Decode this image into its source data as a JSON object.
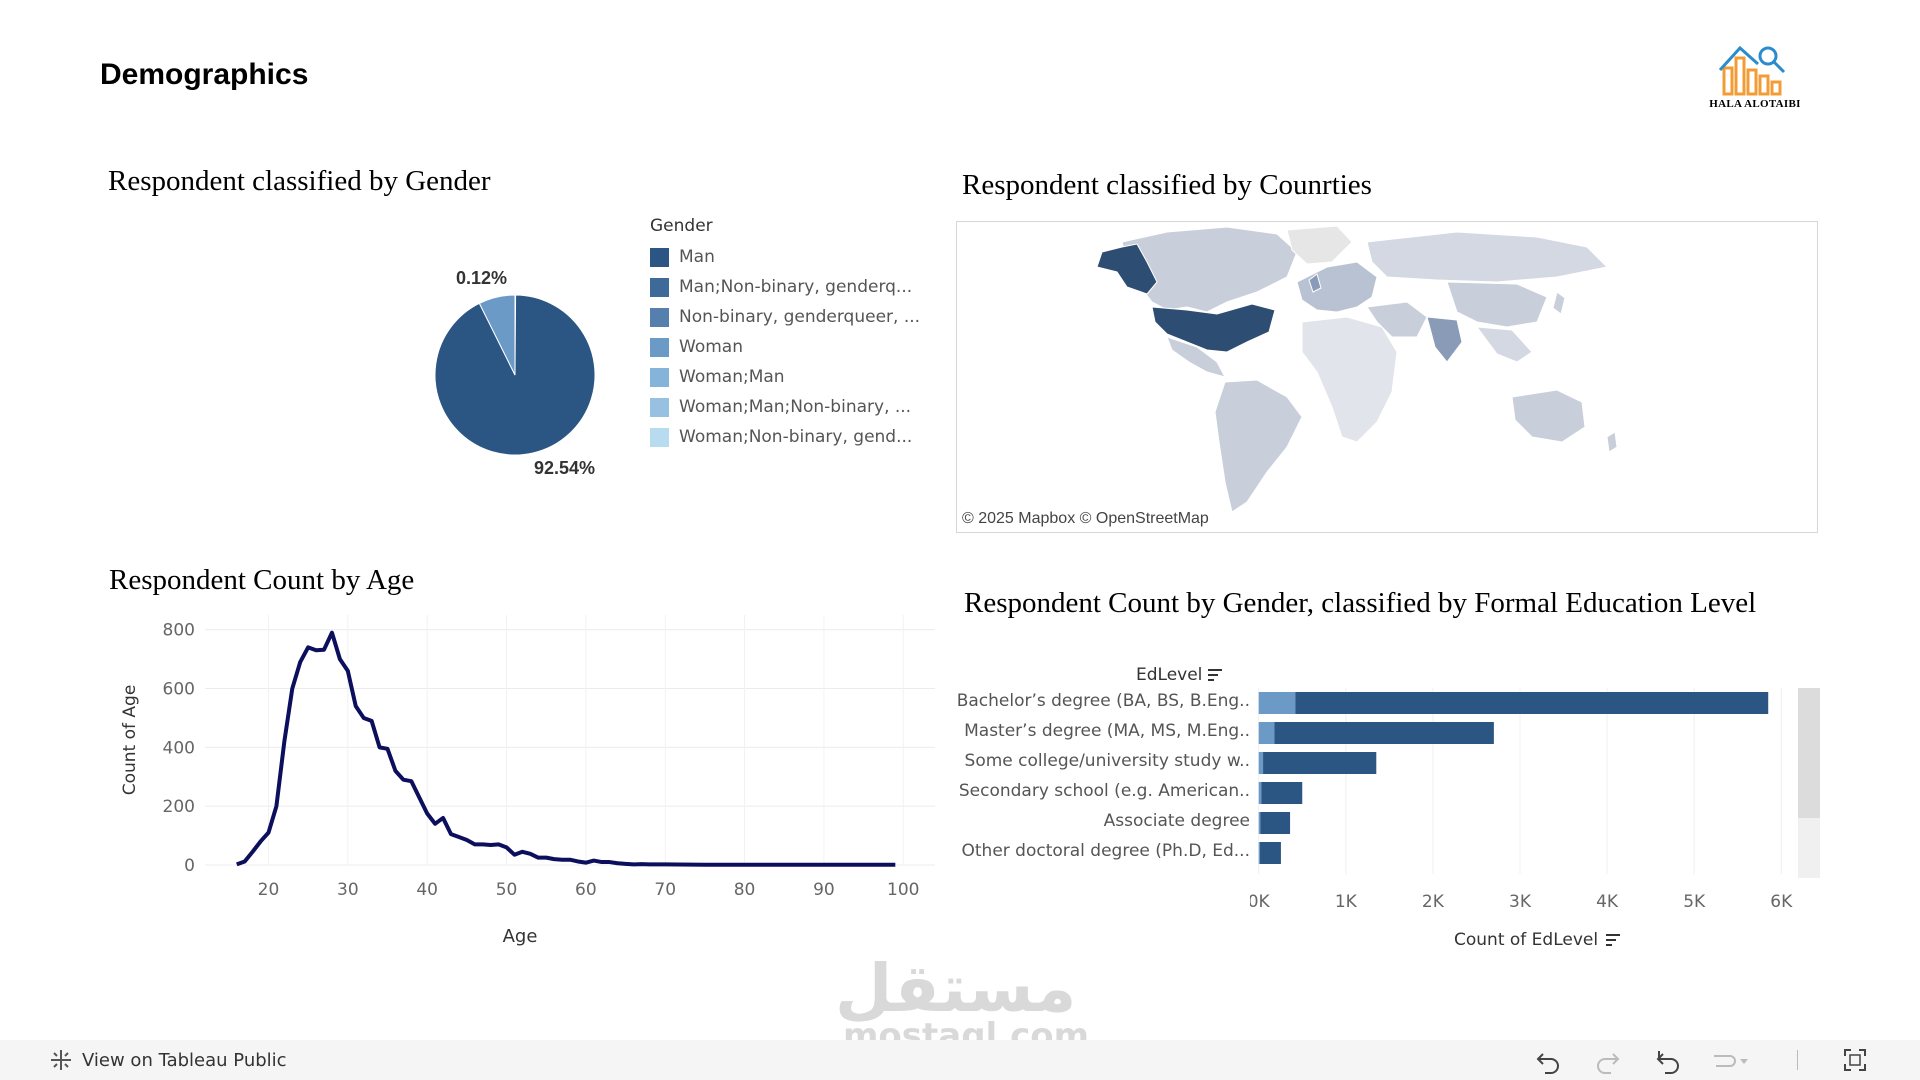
{
  "page_title": "Demographics",
  "logo_text": "HALA ALOTAIBI",
  "gender": {
    "title": "Respondent classified by Gender",
    "legend_title": "Gender",
    "legend": [
      {
        "label": "Man",
        "color": "#2b5583"
      },
      {
        "label": "Man;Non-binary, genderq...",
        "color": "#3e6a99"
      },
      {
        "label": "Non-binary, genderqueer, ...",
        "color": "#5580ad"
      },
      {
        "label": "Woman",
        "color": "#6b9ac7"
      },
      {
        "label": "Woman;Man",
        "color": "#86b3d9"
      },
      {
        "label": "Woman;Man;Non-binary, ...",
        "color": "#97c0e1"
      },
      {
        "label": "Woman;Non-binary, gend...",
        "color": "#b7dcf0"
      }
    ],
    "pie_label_small": "0.12%",
    "pie_label_large": "92.54%"
  },
  "countries": {
    "title": "Respondent classified by Counrties",
    "credit": "© 2025 Mapbox  © OpenStreetMap"
  },
  "age": {
    "title": "Respondent Count by Age",
    "chart_data": {
      "type": "line",
      "xlabel": "Age",
      "ylabel": "Count of Age",
      "xlim": [
        12,
        104
      ],
      "ylim": [
        0,
        850
      ],
      "x_ticks": [
        20,
        30,
        40,
        50,
        60,
        70,
        80,
        90,
        100
      ],
      "y_ticks": [
        0,
        200,
        400,
        600,
        800
      ],
      "x": [
        16,
        17,
        18,
        19,
        20,
        21,
        22,
        23,
        24,
        25,
        26,
        27,
        28,
        29,
        30,
        31,
        32,
        33,
        34,
        35,
        36,
        37,
        38,
        39,
        40,
        41,
        42,
        43,
        44,
        45,
        46,
        47,
        48,
        49,
        50,
        51,
        52,
        53,
        54,
        55,
        56,
        57,
        58,
        59,
        60,
        61,
        62,
        63,
        64,
        65,
        66,
        67,
        68,
        70,
        75,
        80,
        85,
        90,
        95,
        99
      ],
      "values": [
        2,
        12,
        45,
        80,
        110,
        200,
        420,
        600,
        690,
        740,
        730,
        732,
        790,
        700,
        660,
        540,
        500,
        490,
        400,
        395,
        320,
        290,
        285,
        230,
        175,
        140,
        160,
        105,
        95,
        85,
        70,
        70,
        68,
        70,
        60,
        35,
        45,
        38,
        25,
        25,
        20,
        18,
        18,
        12,
        8,
        15,
        10,
        10,
        6,
        4,
        2,
        3,
        2,
        2,
        1,
        1,
        1,
        1,
        1,
        1
      ]
    }
  },
  "education": {
    "title": "Respondent Count by Gender, classified by Formal Education Level",
    "row_header": "EdLevel",
    "measure_label": "Count of EdLevel",
    "chart_data": {
      "type": "bar",
      "orientation": "horizontal",
      "stacked": true,
      "xlim": [
        -100,
        6100
      ],
      "x_ticks": [
        "0K",
        "1K",
        "2K",
        "3K",
        "4K",
        "5K",
        "6K"
      ],
      "categories": [
        "Bachelor’s degree (BA, BS, B.Eng..",
        "Master’s degree (MA, MS, M.Eng..",
        "Some college/university study w..",
        "Secondary school (e.g. American..",
        "Associate degree",
        "Other doctoral degree (Ph.D, Ed..."
      ],
      "series": [
        {
          "color": "#6b9ac7",
          "values": [
            420,
            180,
            50,
            30,
            20,
            15
          ]
        },
        {
          "color": "#2b5583",
          "values": [
            5430,
            2520,
            1300,
            470,
            340,
            240
          ]
        }
      ]
    }
  },
  "footer": {
    "view_link": "View on Tableau Public"
  },
  "watermark": {
    "arabic": "مستقل",
    "latin": "mostaql.com"
  },
  "colors": {
    "primary_bar": "#2b5583",
    "secondary_bar": "#6b9ac7",
    "line": "#0b0f5c",
    "map_highlight": "#2e4d73"
  }
}
